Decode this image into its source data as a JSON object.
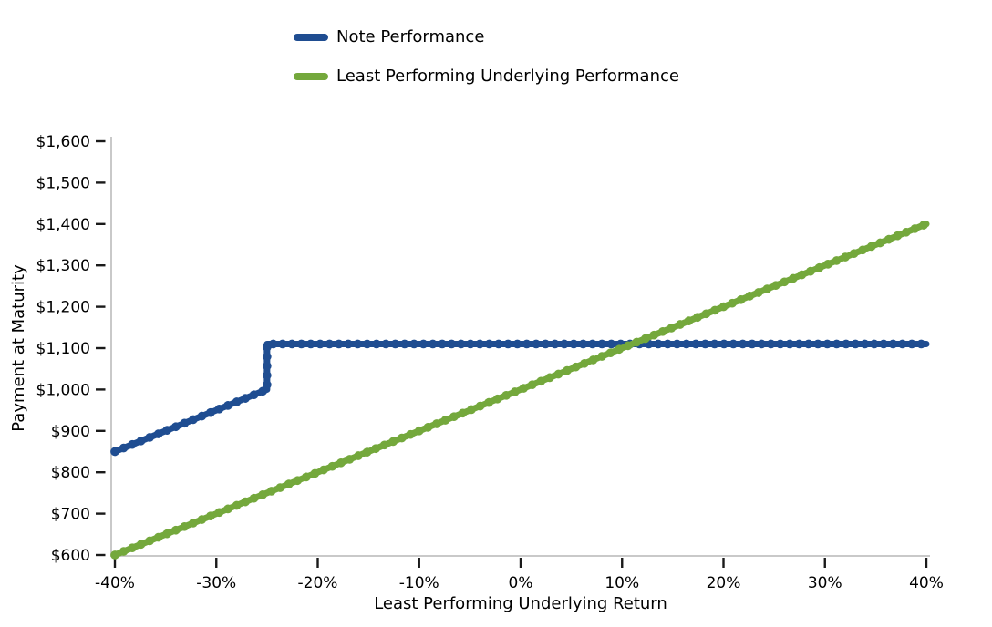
{
  "chart_data": {
    "type": "line",
    "title": "",
    "xlabel": "Least Performing Underlying Return",
    "ylabel": "Payment at Maturity",
    "xlim": [
      -40,
      40
    ],
    "ylim": [
      600,
      1600
    ],
    "grid": false,
    "legend_position": "top-center",
    "x_tick_format": "percent",
    "y_tick_format": "dollars",
    "x_ticks": [
      {
        "value": -40,
        "label": "-40%"
      },
      {
        "value": -30,
        "label": "-30%"
      },
      {
        "value": -20,
        "label": "-20%"
      },
      {
        "value": -10,
        "label": "-10%"
      },
      {
        "value": 0,
        "label": "0%"
      },
      {
        "value": 10,
        "label": "10%"
      },
      {
        "value": 20,
        "label": "20%"
      },
      {
        "value": 30,
        "label": "30%"
      },
      {
        "value": 40,
        "label": "40%"
      }
    ],
    "y_ticks": [
      {
        "value": 600,
        "label": "$600"
      },
      {
        "value": 700,
        "label": "$700"
      },
      {
        "value": 800,
        "label": "$800"
      },
      {
        "value": 900,
        "label": "$900"
      },
      {
        "value": 1000,
        "label": "$1,000"
      },
      {
        "value": 1100,
        "label": "$1,100"
      },
      {
        "value": 1200,
        "label": "$1,200"
      },
      {
        "value": 1300,
        "label": "$1,300"
      },
      {
        "value": 1400,
        "label": "$1,400"
      },
      {
        "value": 1500,
        "label": "$1,500"
      },
      {
        "value": 1600,
        "label": "$1,600"
      }
    ],
    "series": [
      {
        "name": "Note Performance",
        "color": "#1F4D91",
        "points": [
          [
            -40,
            850
          ],
          [
            -25,
            1000
          ],
          [
            -25,
            1110
          ],
          [
            40,
            1110
          ]
        ]
      },
      {
        "name": "Least Performing Underlying Performance",
        "color": "#74A83C",
        "points": [
          [
            -40,
            600
          ],
          [
            40,
            1400
          ]
        ]
      }
    ]
  },
  "style": {
    "spine_color": "#c9c9c9",
    "tick_color": "#1a1a1a",
    "text_color": "#000000",
    "background": "#ffffff"
  }
}
